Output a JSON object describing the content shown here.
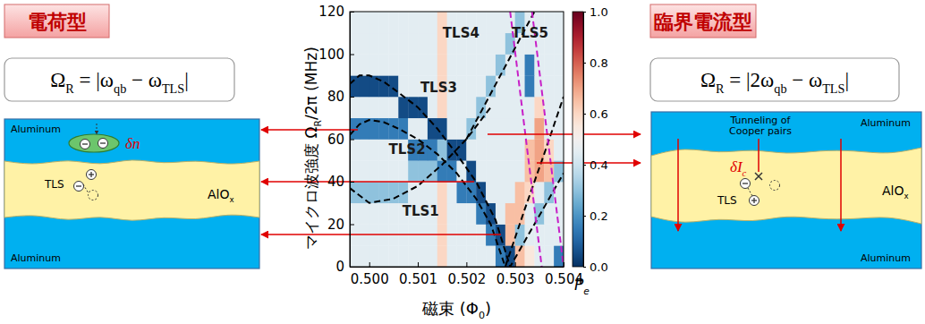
{
  "left_panel": {
    "title": "電荷型",
    "formula": [
      "Ω",
      "R",
      " = |ω",
      "qb",
      " − ω",
      "TLS",
      "|"
    ],
    "top_metal": "Aluminum",
    "bottom_metal": "Aluminum",
    "oxide": [
      "AlO",
      "x"
    ],
    "tls": "TLS",
    "charge": "δn"
  },
  "right_panel": {
    "title": "臨界電流型",
    "formula": [
      "Ω",
      "R",
      " = |2ω",
      "qb",
      " − ω",
      "TLS",
      "|"
    ],
    "top_metal": "Aluminum",
    "bottom_metal": "Aluminum",
    "oxide": [
      "AlO",
      "x"
    ],
    "tls": "TLS",
    "tunneling": [
      "Tunneling of",
      "Cooper pairs"
    ],
    "current": [
      "δI",
      "c"
    ]
  },
  "chart_data": {
    "type": "heatmap",
    "xlabel": [
      "磁束 (Φ",
      "0",
      ")"
    ],
    "ylabel": [
      "マイクロ波強度 Ω",
      "R",
      "/2π (MHz)"
    ],
    "xlim": [
      0.4996,
      0.504
    ],
    "ylim": [
      0,
      120
    ],
    "xticks": [
      {
        "value": 0.5,
        "label": "0.500"
      },
      {
        "value": 0.501,
        "label": "0.501"
      },
      {
        "value": 0.502,
        "label": "0.502"
      },
      {
        "value": 0.503,
        "label": "0.503"
      },
      {
        "value": 0.504,
        "label": "0.504"
      }
    ],
    "yticks": [
      0,
      20,
      40,
      60,
      80,
      100,
      120
    ],
    "x_edges": [
      0.4996,
      0.4998,
      0.5,
      0.5002,
      0.5004,
      0.5006,
      0.5008,
      0.501,
      0.5012,
      0.5014,
      0.5016,
      0.5018,
      0.502,
      0.5022,
      0.5024,
      0.5026,
      0.5028,
      0.503,
      0.5032,
      0.5034,
      0.5036,
      0.5038,
      0.504
    ],
    "y_edges": [
      0,
      10,
      20,
      30,
      40,
      50,
      60,
      70,
      80,
      90,
      100,
      110,
      120
    ],
    "cells": [
      [
        0.45,
        0.45,
        0.45,
        0.45,
        0.45,
        0.45,
        0.45,
        0.45,
        0.45,
        0.6,
        0.45,
        0.45,
        0.45,
        0.45,
        0.45,
        0.15,
        0.05,
        0.65,
        0.55,
        0.45,
        0.45,
        0.15
      ],
      [
        0.45,
        0.45,
        0.45,
        0.45,
        0.45,
        0.45,
        0.45,
        0.45,
        0.45,
        0.6,
        0.45,
        0.45,
        0.45,
        0.45,
        0.15,
        0.05,
        0.65,
        0.3,
        0.45,
        0.45,
        0.45,
        0.45
      ],
      [
        0.45,
        0.45,
        0.45,
        0.45,
        0.45,
        0.45,
        0.45,
        0.45,
        0.45,
        0.6,
        0.45,
        0.45,
        0.45,
        0.15,
        0.05,
        0.45,
        0.65,
        0.65,
        0.45,
        0.3,
        0.45,
        0.45
      ],
      [
        0.3,
        0.3,
        0.3,
        0.3,
        0.3,
        0.3,
        0.45,
        0.45,
        0.45,
        0.6,
        0.45,
        0.15,
        0.15,
        0.05,
        0.45,
        0.45,
        0.45,
        0.65,
        0.6,
        0.45,
        0.3,
        0.45
      ],
      [
        0.45,
        0.45,
        0.45,
        0.45,
        0.45,
        0.45,
        0.3,
        0.3,
        0.3,
        0.15,
        0.15,
        0.45,
        0.05,
        0.45,
        0.45,
        0.45,
        0.45,
        0.45,
        0.65,
        0.7,
        0.65,
        0.3
      ],
      [
        0.45,
        0.45,
        0.45,
        0.45,
        0.45,
        0.45,
        0.15,
        0.15,
        0.15,
        0.3,
        0.05,
        0.05,
        0.45,
        0.45,
        0.45,
        0.45,
        0.45,
        0.45,
        0.65,
        0.7,
        0.6,
        0.45
      ],
      [
        0.15,
        0.15,
        0.15,
        0.15,
        0.15,
        0.15,
        0.45,
        0.45,
        0.05,
        0.05,
        0.45,
        0.45,
        0.3,
        0.45,
        0.45,
        0.45,
        0.45,
        0.45,
        0.45,
        0.7,
        0.45,
        0.45
      ],
      [
        0.45,
        0.45,
        0.45,
        0.45,
        0.45,
        0.05,
        0.05,
        0.05,
        0.45,
        0.6,
        0.45,
        0.45,
        0.45,
        0.3,
        0.45,
        0.45,
        0.45,
        0.45,
        0.45,
        0.6,
        0.45,
        0.45
      ],
      [
        0.05,
        0.05,
        0.05,
        0.05,
        0.05,
        0.45,
        0.45,
        0.45,
        0.45,
        0.6,
        0.45,
        0.45,
        0.45,
        0.45,
        0.3,
        0.45,
        0.45,
        0.45,
        0.15,
        0.45,
        0.45,
        0.45
      ],
      [
        0.45,
        0.45,
        0.45,
        0.45,
        0.45,
        0.45,
        0.45,
        0.45,
        0.45,
        0.6,
        0.45,
        0.45,
        0.45,
        0.45,
        0.45,
        0.3,
        0.45,
        0.45,
        0.15,
        0.45,
        0.45,
        0.45
      ],
      [
        0.45,
        0.45,
        0.45,
        0.45,
        0.45,
        0.45,
        0.45,
        0.45,
        0.45,
        0.6,
        0.45,
        0.45,
        0.45,
        0.45,
        0.45,
        0.45,
        0.3,
        0.45,
        0.45,
        0.45,
        0.45,
        0.45
      ],
      [
        0.45,
        0.45,
        0.45,
        0.45,
        0.45,
        0.45,
        0.45,
        0.45,
        0.45,
        0.6,
        0.45,
        0.45,
        0.45,
        0.45,
        0.45,
        0.45,
        0.45,
        0.3,
        0.45,
        0.45,
        0.45,
        0.45
      ]
    ],
    "colorbar": {
      "label": [
        "P",
        "e"
      ],
      "range": [
        0,
        1
      ],
      "ticks": [
        {
          "value": 0,
          "label": "0.0"
        },
        {
          "value": 0.2,
          "label": "0.2"
        },
        {
          "value": 0.4,
          "label": "0.4"
        },
        {
          "value": 0.6,
          "label": "0.6"
        },
        {
          "value": 0.8,
          "label": "0.8"
        },
        {
          "value": 1,
          "label": "1.0"
        }
      ]
    },
    "series": [
      {
        "color": "#000000",
        "line_style": "dashed",
        "x": [
          0.4996,
          0.5,
          0.5005,
          0.501,
          0.5015,
          0.502,
          0.5025
        ],
        "y": [
          37,
          30,
          32,
          38,
          48,
          60,
          75
        ]
      },
      {
        "color": "#000000",
        "line_style": "dashed",
        "x": [
          0.4996,
          0.4998,
          0.5,
          0.5003,
          0.5006,
          0.501,
          0.5014,
          0.5018,
          0.5022,
          0.5025,
          0.5028,
          0.5032,
          0.5036,
          0.504
        ],
        "y": [
          62,
          67,
          69,
          68,
          65,
          60,
          53,
          44,
          32,
          20,
          0,
          27,
          53,
          80
        ]
      },
      {
        "color": "#000000",
        "line_style": "dashed",
        "x": [
          0.4996,
          0.4998,
          0.5,
          0.5003,
          0.5006,
          0.501,
          0.5014,
          0.5018,
          0.5022,
          0.5026,
          0.5029,
          0.5034,
          0.504
        ],
        "y": [
          86,
          90,
          90,
          87,
          82,
          75,
          65,
          53,
          40,
          22,
          0,
          20,
          44
        ]
      },
      {
        "color": "#000000",
        "line_style": "dashed",
        "x": [
          0.502,
          0.5034
        ],
        "y": [
          60,
          120
        ]
      },
      {
        "color": "#c71fc7",
        "line_style": "dashed",
        "x": [
          0.5029,
          0.50355,
          null,
          0.50335,
          0.504
        ],
        "y": [
          120,
          0,
          null,
          120,
          0
        ]
      }
    ],
    "annotations": [
      {
        "text": "TLS1",
        "x": 0.50106,
        "y": 24
      },
      {
        "text": "TLS2",
        "x": 0.50078,
        "y": 53
      },
      {
        "text": "TLS3",
        "x": 0.50143,
        "y": 82
      },
      {
        "text": "TLS4",
        "x": 0.50189,
        "y": 108
      },
      {
        "text": "TLS5",
        "x": 0.50331,
        "y": 108
      }
    ]
  }
}
